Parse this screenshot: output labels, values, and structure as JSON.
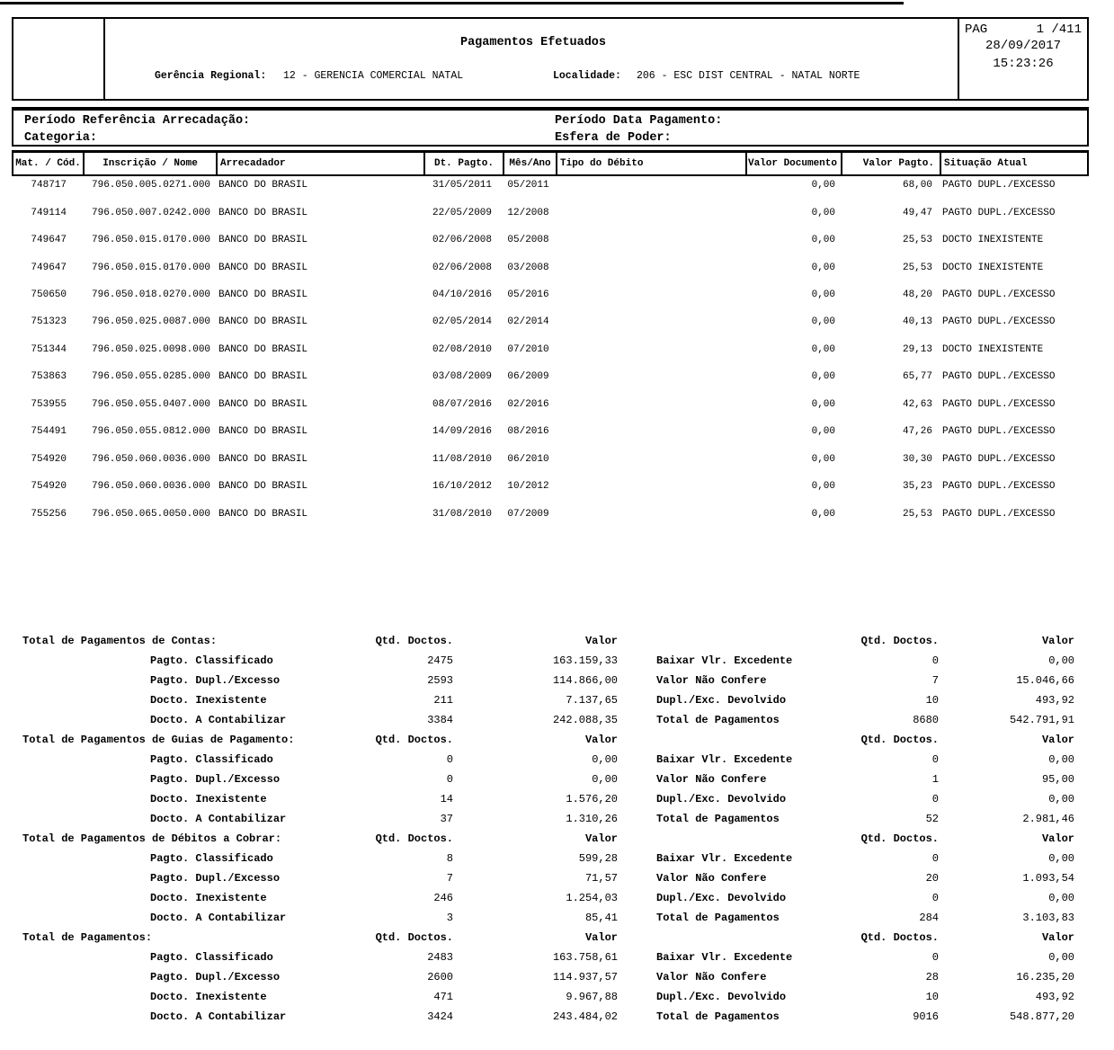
{
  "header": {
    "title": "Pagamentos Efetuados",
    "gerencia_label": "Gerência Regional:",
    "gerencia_value": "12 - GERENCIA COMERCIAL NATAL",
    "localidade_label": "Localidade:",
    "localidade_value": "206 - ESC DIST CENTRAL - NATAL NORTE",
    "page_label": "PAG",
    "page_value": "1 /411",
    "date": "28/09/2017",
    "time": "15:23:26"
  },
  "filters": {
    "periodo_referencia_label": "Período Referência Arrecadação:",
    "categoria_label": "Categoria:",
    "periodo_pagamento_label": "Período Data Pagamento:",
    "esfera_label": "Esfera de Poder:"
  },
  "table": {
    "columns": [
      "Mat. / Cód.",
      "Inscrição / Nome",
      "Arrecadador",
      "Dt. Pagto.",
      "Mês/Ano",
      "Tipo do Débito",
      "Valor Documento",
      "Valor Pagto.",
      "Situação Atual"
    ],
    "rows": [
      [
        "748717",
        "796.050.005.0271.000",
        "BANCO DO BRASIL",
        "31/05/2011",
        "05/2011",
        "",
        "0,00",
        "68,00",
        "PAGTO DUPL./EXCESSO"
      ],
      [
        "749114",
        "796.050.007.0242.000",
        "BANCO DO BRASIL",
        "22/05/2009",
        "12/2008",
        "",
        "0,00",
        "49,47",
        "PAGTO DUPL./EXCESSO"
      ],
      [
        "749647",
        "796.050.015.0170.000",
        "BANCO DO BRASIL",
        "02/06/2008",
        "05/2008",
        "",
        "0,00",
        "25,53",
        "DOCTO INEXISTENTE"
      ],
      [
        "749647",
        "796.050.015.0170.000",
        "BANCO DO BRASIL",
        "02/06/2008",
        "03/2008",
        "",
        "0,00",
        "25,53",
        "DOCTO INEXISTENTE"
      ],
      [
        "750650",
        "796.050.018.0270.000",
        "BANCO DO BRASIL",
        "04/10/2016",
        "05/2016",
        "",
        "0,00",
        "48,20",
        "PAGTO DUPL./EXCESSO"
      ],
      [
        "751323",
        "796.050.025.0087.000",
        "BANCO DO BRASIL",
        "02/05/2014",
        "02/2014",
        "",
        "0,00",
        "40,13",
        "PAGTO DUPL./EXCESSO"
      ],
      [
        "751344",
        "796.050.025.0098.000",
        "BANCO DO BRASIL",
        "02/08/2010",
        "07/2010",
        "",
        "0,00",
        "29,13",
        "DOCTO INEXISTENTE"
      ],
      [
        "753863",
        "796.050.055.0285.000",
        "BANCO DO BRASIL",
        "03/08/2009",
        "06/2009",
        "",
        "0,00",
        "65,77",
        "PAGTO DUPL./EXCESSO"
      ],
      [
        "753955",
        "796.050.055.0407.000",
        "BANCO DO BRASIL",
        "08/07/2016",
        "02/2016",
        "",
        "0,00",
        "42,63",
        "PAGTO DUPL./EXCESSO"
      ],
      [
        "754491",
        "796.050.055.0812.000",
        "BANCO DO BRASIL",
        "14/09/2016",
        "08/2016",
        "",
        "0,00",
        "47,26",
        "PAGTO DUPL./EXCESSO"
      ],
      [
        "754920",
        "796.050.060.0036.000",
        "BANCO DO BRASIL",
        "11/08/2010",
        "06/2010",
        "",
        "0,00",
        "30,30",
        "PAGTO DUPL./EXCESSO"
      ],
      [
        "754920",
        "796.050.060.0036.000",
        "BANCO DO BRASIL",
        "16/10/2012",
        "10/2012",
        "",
        "0,00",
        "35,23",
        "PAGTO DUPL./EXCESSO"
      ],
      [
        "755256",
        "796.050.065.0050.000",
        "BANCO DO BRASIL",
        "31/08/2010",
        "07/2009",
        "",
        "0,00",
        "25,53",
        "PAGTO DUPL./EXCESSO"
      ]
    ]
  },
  "summary": {
    "qtd_header": "Qtd. Doctos.",
    "valor_header": "Valor",
    "blocks": [
      {
        "title": "Total de Pagamentos de Contas:",
        "left_rows": [
          {
            "label": "Pagto. Classificado",
            "qtd": "2475",
            "valor": "163.159,33"
          },
          {
            "label": "Pagto. Dupl./Excesso",
            "qtd": "2593",
            "valor": "114.866,00"
          },
          {
            "label": "Docto. Inexistente",
            "qtd": "211",
            "valor": "7.137,65"
          },
          {
            "label": "Docto. A Contabilizar",
            "qtd": "3384",
            "valor": "242.088,35"
          }
        ],
        "right_rows": [
          {
            "label": "Baixar Vlr. Excedente",
            "qtd": "0",
            "valor": "0,00"
          },
          {
            "label": "Valor Não Confere",
            "qtd": "7",
            "valor": "15.046,66"
          },
          {
            "label": "Dupl./Exc. Devolvido",
            "qtd": "10",
            "valor": "493,92"
          },
          {
            "label": "Total de Pagamentos",
            "qtd": "8680",
            "valor": "542.791,91"
          }
        ]
      },
      {
        "title": "Total de Pagamentos de Guias de Pagamento:",
        "left_rows": [
          {
            "label": "Pagto. Classificado",
            "qtd": "0",
            "valor": "0,00"
          },
          {
            "label": "Pagto. Dupl./Excesso",
            "qtd": "0",
            "valor": "0,00"
          },
          {
            "label": "Docto. Inexistente",
            "qtd": "14",
            "valor": "1.576,20"
          },
          {
            "label": "Docto. A Contabilizar",
            "qtd": "37",
            "valor": "1.310,26"
          }
        ],
        "right_rows": [
          {
            "label": "Baixar Vlr. Excedente",
            "qtd": "0",
            "valor": "0,00"
          },
          {
            "label": "Valor Não Confere",
            "qtd": "1",
            "valor": "95,00"
          },
          {
            "label": "Dupl./Exc. Devolvido",
            "qtd": "0",
            "valor": "0,00"
          },
          {
            "label": "Total de Pagamentos",
            "qtd": "52",
            "valor": "2.981,46"
          }
        ]
      },
      {
        "title": "Total de Pagamentos de Débitos a Cobrar:",
        "left_rows": [
          {
            "label": "Pagto. Classificado",
            "qtd": "8",
            "valor": "599,28"
          },
          {
            "label": "Pagto. Dupl./Excesso",
            "qtd": "7",
            "valor": "71,57"
          },
          {
            "label": "Docto. Inexistente",
            "qtd": "246",
            "valor": "1.254,03"
          },
          {
            "label": "Docto. A Contabilizar",
            "qtd": "3",
            "valor": "85,41"
          }
        ],
        "right_rows": [
          {
            "label": "Baixar Vlr. Excedente",
            "qtd": "0",
            "valor": "0,00"
          },
          {
            "label": "Valor Não Confere",
            "qtd": "20",
            "valor": "1.093,54"
          },
          {
            "label": "Dupl./Exc. Devolvido",
            "qtd": "0",
            "valor": "0,00"
          },
          {
            "label": "Total de Pagamentos",
            "qtd": "284",
            "valor": "3.103,83"
          }
        ]
      },
      {
        "title": "Total de Pagamentos:",
        "left_rows": [
          {
            "label": "Pagto. Classificado",
            "qtd": "2483",
            "valor": "163.758,61"
          },
          {
            "label": "Pagto. Dupl./Excesso",
            "qtd": "2600",
            "valor": "114.937,57"
          },
          {
            "label": "Docto. Inexistente",
            "qtd": "471",
            "valor": "9.967,88"
          },
          {
            "label": "Docto. A Contabilizar",
            "qtd": "3424",
            "valor": "243.484,02"
          }
        ],
        "right_rows": [
          {
            "label": "Baixar Vlr. Excedente",
            "qtd": "0",
            "valor": "0,00"
          },
          {
            "label": "Valor Não Confere",
            "qtd": "28",
            "valor": "16.235,20"
          },
          {
            "label": "Dupl./Exc. Devolvido",
            "qtd": "10",
            "valor": "493,92"
          },
          {
            "label": "Total de Pagamentos",
            "qtd": "9016",
            "valor": "548.877,20"
          }
        ]
      }
    ]
  }
}
